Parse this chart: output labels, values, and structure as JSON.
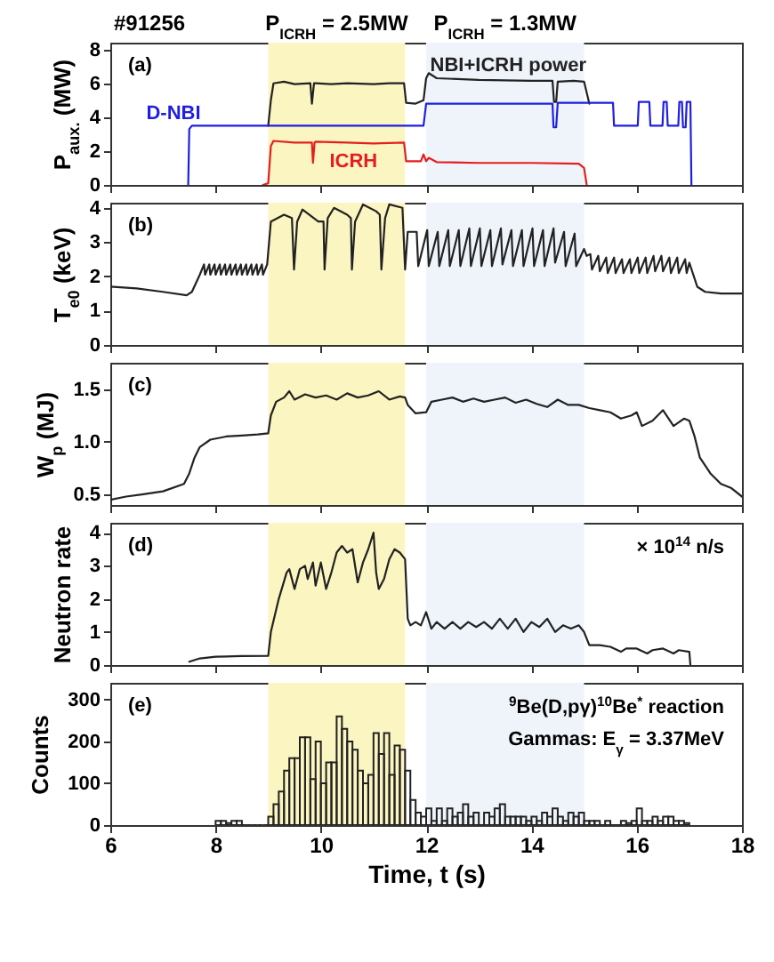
{
  "chart_data": [
    {
      "type": "line",
      "title": "#91256",
      "ylabel": "P$_{aux.}$ (MW)",
      "annotations": [
        "(a)"
      ],
      "xlim": [
        6,
        18
      ],
      "xticks": [
        6,
        8,
        10,
        12,
        14,
        16,
        18
      ],
      "ylim": [
        0,
        8.4
      ],
      "yticks": [
        0,
        2,
        4,
        6,
        8
      ],
      "tick_labels": "y",
      "bands": [
        {
          "axis": "x",
          "from": 9,
          "to": 11.6,
          "label": "P$_{ICRH}$ = 2.5MW",
          "color": "#fbf5c1"
        },
        {
          "axis": "x",
          "from": 12,
          "to": 15,
          "label": "P$_{ICRH}$ = 1.3MW",
          "color": "#eef4fa"
        }
      ],
      "series": [
        {
          "name": "NBI+ICRH power",
          "color": "#222222",
          "x": [
            9.0,
            9.05,
            9.1,
            9.3,
            9.5,
            9.8,
            9.83,
            9.87,
            9.9,
            10.2,
            10.5,
            11.0,
            11.3,
            11.58,
            11.62,
            11.8,
            11.95,
            12.0,
            12.05,
            12.2,
            13.0,
            14.0,
            14.4,
            14.43,
            14.47,
            14.5,
            14.8,
            15.0,
            15.1
          ],
          "values": [
            3.5,
            5.0,
            6.0,
            6.1,
            5.95,
            6.0,
            4.8,
            6.0,
            6.0,
            5.95,
            6.0,
            5.95,
            6.0,
            6.0,
            4.85,
            4.8,
            5.0,
            6.3,
            6.6,
            6.3,
            6.2,
            6.15,
            6.15,
            4.9,
            4.9,
            6.1,
            6.15,
            6.1,
            4.8
          ]
        },
        {
          "name": "D-NBI",
          "color": "#1f1fe0",
          "x": [
            7.48,
            7.5,
            7.55,
            11.95,
            12.0,
            14.4,
            14.42,
            14.47,
            14.5,
            15.55,
            15.57,
            16.02,
            16.04,
            16.24,
            16.26,
            16.49,
            16.51,
            16.57,
            16.59,
            16.79,
            16.81,
            16.86,
            16.88,
            16.93,
            16.95,
            17.02,
            17.04
          ],
          "values": [
            0,
            3.3,
            3.5,
            3.5,
            4.8,
            4.8,
            3.4,
            3.4,
            4.85,
            4.85,
            3.5,
            3.5,
            4.9,
            4.9,
            3.5,
            3.5,
            4.9,
            4.9,
            3.5,
            3.5,
            4.9,
            4.9,
            3.4,
            3.4,
            4.9,
            4.9,
            0
          ]
        },
        {
          "name": "ICRH",
          "color": "#e41e1e",
          "x": [
            8.9,
            9.0,
            9.05,
            9.1,
            9.5,
            9.83,
            9.85,
            9.88,
            9.9,
            10.5,
            11.0,
            11.58,
            11.62,
            11.9,
            11.95,
            12.0,
            12.05,
            12.2,
            13.0,
            14.0,
            14.9,
            15.0,
            15.05
          ],
          "values": [
            0,
            0.1,
            2.3,
            2.6,
            2.5,
            2.5,
            1.3,
            2.5,
            2.55,
            2.5,
            2.45,
            2.5,
            1.4,
            1.4,
            1.8,
            1.4,
            1.6,
            1.35,
            1.3,
            1.3,
            1.25,
            1.0,
            0
          ]
        }
      ]
    },
    {
      "type": "line",
      "ylabel": "T$_{e0}$ (keV)",
      "annotations": [
        "(b)"
      ],
      "xlim": [
        6,
        18
      ],
      "xticks": [
        6,
        8,
        10,
        12,
        14,
        16,
        18
      ],
      "ylim": [
        0,
        4.15
      ],
      "yticks": [
        0,
        1,
        2,
        3,
        4
      ],
      "tick_labels": "y",
      "bands": [
        {
          "axis": "x",
          "from": 9,
          "to": 11.6,
          "color": "#fbf5c1"
        },
        {
          "axis": "x",
          "from": 12,
          "to": 15,
          "color": "#eef4fa"
        }
      ],
      "series": [
        {
          "color": "#222222",
          "x": [
            6.0,
            6.5,
            7.0,
            7.45,
            7.55,
            7.7,
            7.78,
            7.8,
            7.88,
            7.9,
            7.98,
            8.0,
            8.08,
            8.1,
            8.18,
            8.2,
            8.28,
            8.3,
            8.38,
            8.4,
            8.48,
            8.5,
            8.58,
            8.6,
            8.68,
            8.7,
            8.78,
            8.8,
            8.88,
            8.9,
            8.98,
            9.05,
            9.3,
            9.45,
            9.49,
            9.55,
            9.65,
            9.95,
            10.05,
            10.07,
            10.13,
            10.25,
            10.5,
            10.57,
            10.59,
            10.65,
            10.8,
            11.05,
            11.12,
            11.15,
            11.22,
            11.3,
            11.55,
            11.6,
            11.65,
            11.82,
            11.85,
            12.02,
            12.05,
            12.22,
            12.25,
            12.42,
            12.45,
            12.62,
            12.65,
            12.82,
            12.85,
            13.02,
            13.05,
            13.22,
            13.25,
            13.42,
            13.45,
            13.62,
            13.65,
            13.82,
            13.85,
            14.02,
            14.05,
            14.22,
            14.25,
            14.42,
            14.45,
            14.62,
            14.65,
            14.82,
            14.85,
            15.0,
            15.05,
            15.12,
            15.15,
            15.27,
            15.3,
            15.42,
            15.45,
            15.57,
            15.6,
            15.72,
            15.75,
            15.87,
            15.9,
            16.02,
            16.05,
            16.17,
            16.2,
            16.32,
            16.35,
            16.47,
            16.5,
            16.62,
            16.65,
            16.77,
            16.8,
            16.92,
            16.95,
            17.0,
            17.15,
            17.3,
            17.6,
            18.0
          ],
          "values": [
            1.7,
            1.65,
            1.55,
            1.45,
            1.55,
            2.05,
            2.35,
            2.05,
            2.35,
            2.05,
            2.35,
            2.05,
            2.35,
            2.05,
            2.35,
            2.05,
            2.35,
            2.05,
            2.35,
            2.05,
            2.35,
            2.05,
            2.35,
            2.05,
            2.35,
            2.05,
            2.35,
            2.05,
            2.35,
            2.05,
            2.35,
            3.6,
            3.8,
            3.7,
            2.2,
            3.6,
            3.95,
            3.6,
            3.6,
            2.2,
            3.7,
            4.0,
            3.8,
            3.7,
            2.2,
            3.6,
            4.1,
            3.9,
            3.8,
            2.2,
            3.7,
            4.1,
            4.0,
            2.2,
            3.3,
            3.3,
            2.3,
            3.35,
            2.3,
            3.3,
            2.3,
            3.35,
            2.3,
            3.35,
            2.3,
            3.4,
            2.3,
            3.4,
            2.3,
            3.35,
            2.3,
            3.4,
            2.35,
            3.35,
            2.3,
            3.35,
            2.3,
            3.4,
            2.3,
            3.35,
            2.3,
            3.4,
            2.4,
            3.3,
            2.3,
            3.25,
            2.3,
            2.8,
            2.6,
            2.65,
            2.2,
            2.6,
            2.15,
            2.55,
            2.1,
            2.55,
            2.1,
            2.5,
            2.1,
            2.5,
            2.1,
            2.55,
            2.1,
            2.55,
            2.1,
            2.6,
            2.15,
            2.6,
            2.15,
            2.55,
            2.1,
            2.55,
            2.1,
            2.5,
            2.1,
            2.4,
            1.7,
            1.55,
            1.5,
            1.5
          ]
        }
      ]
    },
    {
      "type": "line",
      "ylabel": "W$_{p}$ (MJ)",
      "annotations": [
        "(c)"
      ],
      "xlim": [
        6,
        18
      ],
      "xticks": [
        6,
        8,
        10,
        12,
        14,
        16,
        18
      ],
      "ylim": [
        0.4,
        1.75
      ],
      "yticks": [
        0.5,
        {
          "value": 1,
          "label": "1.0"
        },
        1.5
      ],
      "tick_labels": "y",
      "bands": [
        {
          "axis": "x",
          "from": 9,
          "to": 11.6,
          "color": "#fbf5c1"
        },
        {
          "axis": "x",
          "from": 12,
          "to": 15,
          "color": "#eef4fa"
        }
      ],
      "series": [
        {
          "color": "#222222",
          "x": [
            6.0,
            6.3,
            6.6,
            7.0,
            7.4,
            7.5,
            7.6,
            7.7,
            7.9,
            8.2,
            8.5,
            8.8,
            9.0,
            9.05,
            9.15,
            9.3,
            9.4,
            9.5,
            9.7,
            9.9,
            10.1,
            10.3,
            10.5,
            10.7,
            10.9,
            11.1,
            11.3,
            11.5,
            11.6,
            11.65,
            11.8,
            12.0,
            12.1,
            12.3,
            12.5,
            12.7,
            12.9,
            13.1,
            13.3,
            13.5,
            13.7,
            13.9,
            14.1,
            14.3,
            14.5,
            14.7,
            14.9,
            15.1,
            15.3,
            15.5,
            15.7,
            15.9,
            16.0,
            16.1,
            16.3,
            16.5,
            16.7,
            16.9,
            17.0,
            17.1,
            17.2,
            17.4,
            17.6,
            17.8,
            18.0
          ],
          "values": [
            0.45,
            0.48,
            0.5,
            0.53,
            0.6,
            0.7,
            0.85,
            0.95,
            1.02,
            1.05,
            1.06,
            1.07,
            1.08,
            1.25,
            1.38,
            1.42,
            1.48,
            1.4,
            1.45,
            1.42,
            1.44,
            1.4,
            1.46,
            1.42,
            1.44,
            1.48,
            1.4,
            1.43,
            1.42,
            1.35,
            1.27,
            1.28,
            1.38,
            1.4,
            1.42,
            1.38,
            1.41,
            1.38,
            1.4,
            1.42,
            1.37,
            1.4,
            1.36,
            1.33,
            1.4,
            1.35,
            1.35,
            1.32,
            1.3,
            1.28,
            1.22,
            1.25,
            1.28,
            1.15,
            1.2,
            1.3,
            1.15,
            1.22,
            1.2,
            1.05,
            0.85,
            0.7,
            0.6,
            0.56,
            0.48
          ]
        }
      ]
    },
    {
      "type": "line",
      "ylabel": "Neutron rate",
      "annotations": [
        "(d)",
        "× 10$^{14}$ n/s"
      ],
      "xlim": [
        6,
        18
      ],
      "xticks": [
        6,
        8,
        10,
        12,
        14,
        16,
        18
      ],
      "ylim": [
        0,
        4.3
      ],
      "yticks": [
        0,
        1,
        2,
        3,
        4
      ],
      "tick_labels": "y",
      "bands": [
        {
          "axis": "x",
          "from": 9,
          "to": 11.6,
          "color": "#fbf5c1"
        },
        {
          "axis": "x",
          "from": 12,
          "to": 15,
          "color": "#eef4fa"
        }
      ],
      "series": [
        {
          "color": "#222222",
          "x": [
            7.5,
            7.7,
            8.0,
            8.5,
            9.0,
            9.05,
            9.2,
            9.35,
            9.4,
            9.5,
            9.6,
            9.7,
            9.75,
            9.85,
            9.9,
            10.0,
            10.1,
            10.2,
            10.3,
            10.4,
            10.5,
            10.6,
            10.7,
            10.8,
            10.9,
            11.0,
            11.05,
            11.1,
            11.2,
            11.3,
            11.4,
            11.5,
            11.6,
            11.65,
            11.7,
            11.8,
            11.9,
            12.0,
            12.1,
            12.2,
            12.35,
            12.5,
            12.65,
            12.8,
            12.95,
            13.1,
            13.25,
            13.4,
            13.55,
            13.7,
            13.85,
            14.0,
            14.15,
            14.3,
            14.45,
            14.6,
            14.75,
            14.9,
            15.0,
            15.1,
            15.3,
            15.5,
            15.7,
            15.8,
            16.0,
            16.2,
            16.3,
            16.5,
            16.7,
            16.8,
            17.0,
            17.02
          ],
          "values": [
            0.1,
            0.2,
            0.25,
            0.27,
            0.28,
            1.0,
            2.0,
            2.8,
            2.9,
            2.3,
            2.9,
            3.0,
            2.6,
            3.1,
            2.4,
            3.1,
            2.3,
            2.8,
            3.4,
            3.6,
            3.4,
            3.5,
            2.5,
            3.1,
            3.5,
            4.0,
            2.8,
            2.3,
            2.6,
            3.2,
            3.5,
            3.4,
            3.2,
            1.4,
            1.2,
            1.3,
            1.2,
            1.6,
            1.1,
            1.3,
            1.1,
            1.3,
            1.1,
            1.3,
            1.15,
            1.3,
            1.1,
            1.4,
            1.1,
            1.4,
            1.0,
            1.3,
            1.15,
            1.4,
            1.0,
            1.2,
            1.1,
            1.2,
            1.0,
            0.6,
            0.6,
            0.55,
            0.4,
            0.5,
            0.5,
            0.35,
            0.45,
            0.5,
            0.35,
            0.45,
            0.4,
            0
          ]
        }
      ]
    },
    {
      "type": "histogram",
      "xlabel": "Time, t (s)",
      "ylabel": "Counts",
      "annotations": [
        "(e)",
        "$^{9}$Be(D,pγ)$^{10}$Be$^{*}$ reaction",
        "Gammas: E$_{γ}$ = 3.37MeV"
      ],
      "xlim": [
        6,
        18
      ],
      "xticks": [
        6,
        8,
        10,
        12,
        14,
        16,
        18
      ],
      "ylim": [
        0,
        340
      ],
      "yticks": [
        0,
        100,
        200,
        300
      ],
      "color": "#222222",
      "bands": [
        {
          "axis": "x",
          "from": 9,
          "to": 11.6,
          "color": "#fbf5c1"
        },
        {
          "axis": "x",
          "from": 12,
          "to": 15,
          "color": "#eef4fa"
        }
      ],
      "bins": [
        8.0,
        8.1,
        8.2,
        8.3,
        8.4,
        8.5,
        8.6,
        8.7,
        8.8,
        8.9,
        9.0,
        9.1,
        9.2,
        9.3,
        9.4,
        9.5,
        9.6,
        9.7,
        9.8,
        9.9,
        10.0,
        10.1,
        10.2,
        10.3,
        10.4,
        10.5,
        10.6,
        10.7,
        10.8,
        10.9,
        11.0,
        11.1,
        11.2,
        11.3,
        11.4,
        11.5,
        11.6,
        11.7,
        11.8,
        11.9,
        12.0,
        12.1,
        12.2,
        12.3,
        12.4,
        12.5,
        12.6,
        12.7,
        12.8,
        12.9,
        13.0,
        13.1,
        13.2,
        13.3,
        13.4,
        13.5,
        13.6,
        13.7,
        13.8,
        13.9,
        14.0,
        14.1,
        14.2,
        14.3,
        14.4,
        14.5,
        14.6,
        14.7,
        14.8,
        14.9,
        15.0,
        15.1,
        15.2,
        15.3,
        15.4,
        15.5,
        15.6,
        15.7,
        15.8,
        15.9,
        16.0,
        16.1,
        16.2,
        16.3,
        16.4,
        16.5,
        16.6,
        16.7,
        16.8,
        16.9,
        17.0
      ],
      "values": [
        10,
        10,
        5,
        10,
        10,
        0,
        0,
        0,
        0,
        0,
        20,
        50,
        80,
        130,
        160,
        160,
        210,
        210,
        110,
        200,
        100,
        150,
        150,
        260,
        230,
        200,
        180,
        130,
        100,
        120,
        220,
        170,
        220,
        120,
        190,
        180,
        130,
        60,
        30,
        20,
        40,
        10,
        40,
        10,
        40,
        20,
        30,
        50,
        20,
        30,
        0,
        30,
        20,
        40,
        50,
        20,
        20,
        20,
        20,
        10,
        20,
        10,
        30,
        20,
        40,
        20,
        10,
        30,
        20,
        30,
        10,
        10,
        10,
        0,
        10,
        0,
        0,
        10,
        5,
        10,
        40,
        10,
        10,
        20,
        10,
        20,
        20,
        10,
        10,
        5
      ]
    }
  ]
}
